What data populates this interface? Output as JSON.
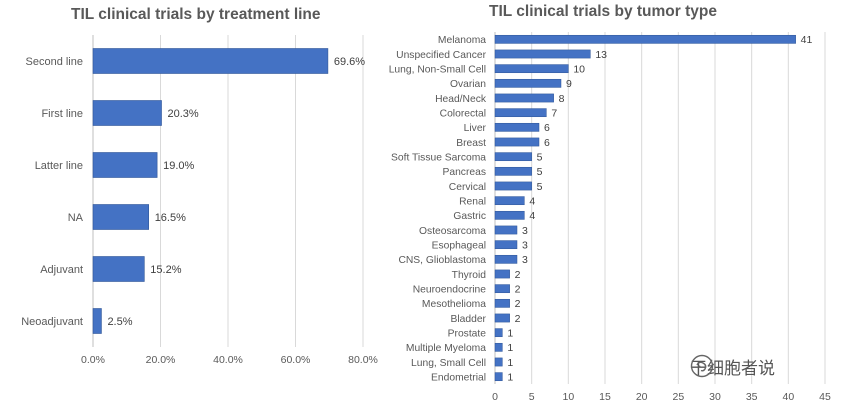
{
  "colors": {
    "bar": "#4472c4",
    "bar_edge": "#2f5597",
    "text": "#404040",
    "grid": "#d9d9d9",
    "axis_text": "#595959"
  },
  "watermark": {
    "text": "干细胞者说",
    "icon": "wechat-icon"
  },
  "chart_data": [
    {
      "type": "bar",
      "orientation": "horizontal",
      "title": "TIL clinical trials by treatment line",
      "categories": [
        "Second line",
        "First line",
        "Latter line",
        "NA",
        "Adjuvant",
        "Neoadjuvant"
      ],
      "values": [
        69.6,
        20.3,
        19.0,
        16.5,
        15.2,
        2.5
      ],
      "data_labels": [
        "69.6%",
        "20.3%",
        "19.0%",
        "16.5%",
        "15.2%",
        "2.5%"
      ],
      "xlim": [
        0,
        80
      ],
      "x_ticks": [
        "0.0%",
        "20.0%",
        "40.0%",
        "60.0%",
        "80.0%"
      ],
      "grid": true,
      "xlabel": "",
      "ylabel": ""
    },
    {
      "type": "bar",
      "orientation": "horizontal",
      "title": "TIL clinical trials by tumor type",
      "categories": [
        "Melanoma",
        "Unspecified Cancer",
        "Lung, Non-Small Cell",
        "Ovarian",
        "Head/Neck",
        "Colorectal",
        "Liver",
        "Breast",
        "Soft Tissue Sarcoma",
        "Pancreas",
        "Cervical",
        "Renal",
        "Gastric",
        "Osteosarcoma",
        "Esophageal",
        "CNS, Glioblastoma",
        "Thyroid",
        "Neuroendocrine",
        "Mesothelioma",
        "Bladder",
        "Prostate",
        "Multiple Myeloma",
        "Lung, Small Cell",
        "Endometrial"
      ],
      "values": [
        41,
        13,
        10,
        9,
        8,
        7,
        6,
        6,
        5,
        5,
        5,
        4,
        4,
        3,
        3,
        3,
        2,
        2,
        2,
        2,
        1,
        1,
        1,
        1
      ],
      "xlim": [
        0,
        45
      ],
      "x_ticks": [
        "0",
        "5",
        "10",
        "15",
        "20",
        "25",
        "30",
        "35",
        "40",
        "45"
      ],
      "grid": true,
      "xlabel": "",
      "ylabel": ""
    }
  ]
}
